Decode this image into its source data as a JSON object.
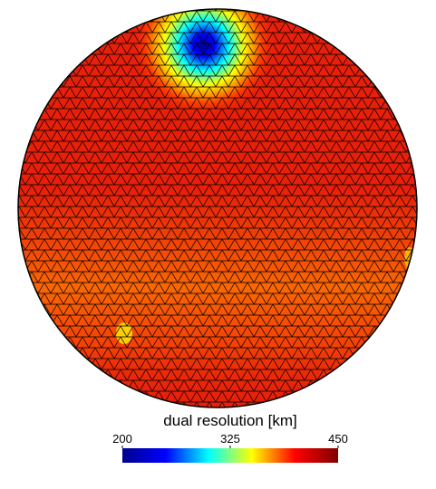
{
  "chart_data": {
    "type": "colorbar-sphere",
    "colorbar": {
      "label": "dual resolution [km]",
      "lim": [
        200,
        450
      ],
      "ticks": [
        200,
        325,
        450
      ],
      "colors": [
        "#00008f",
        "#0000ff",
        "#00ffff",
        "#ffff00",
        "#ff0000",
        "#800000"
      ]
    }
  }
}
